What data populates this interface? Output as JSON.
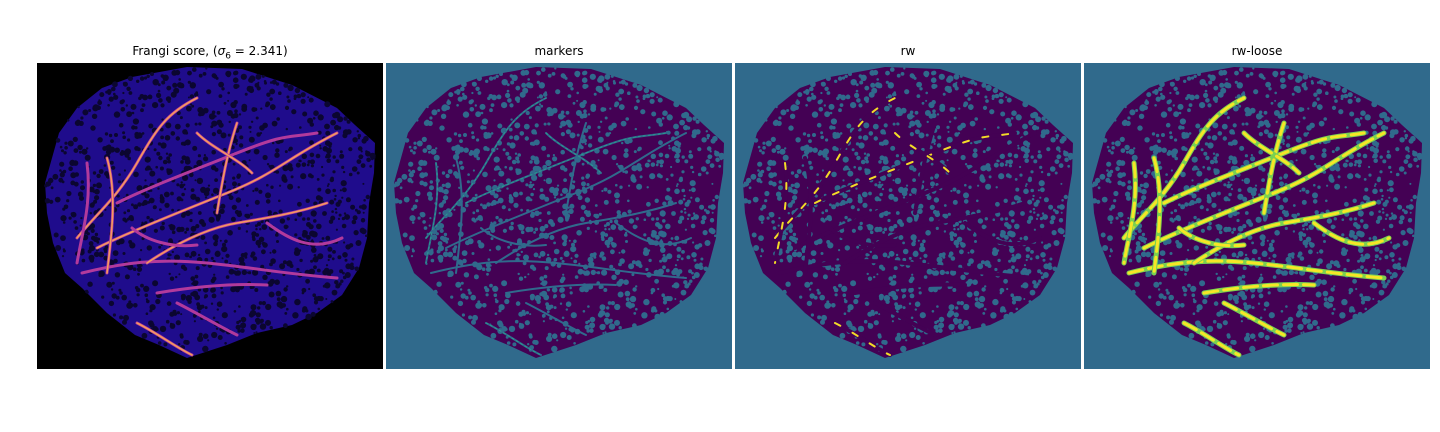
{
  "figure": {
    "panels": [
      {
        "id": "frangi",
        "title_prefix": "Frangi score, (",
        "title_symbol": "σ",
        "title_subscript": "6",
        "title_suffix": " = 2.341)",
        "colormap": "magma-like",
        "background": "#000000"
      },
      {
        "id": "markers",
        "title": "markers",
        "colormap": "viridis",
        "background": "#306a8c"
      },
      {
        "id": "rw",
        "title": "rw",
        "colormap": "viridis",
        "background": "#306a8c"
      },
      {
        "id": "rw-loose",
        "title": "rw-loose",
        "colormap": "viridis",
        "background": "#306a8c"
      }
    ],
    "colors": {
      "background_label": "#306a8c",
      "tissue": "#440154",
      "highlight": "#fde725",
      "highlight_green": "#7ad151",
      "frangi_bg": "#000000",
      "frangi_tissue": "#1f0c8c",
      "frangi_hot": "#f9a05a"
    }
  }
}
